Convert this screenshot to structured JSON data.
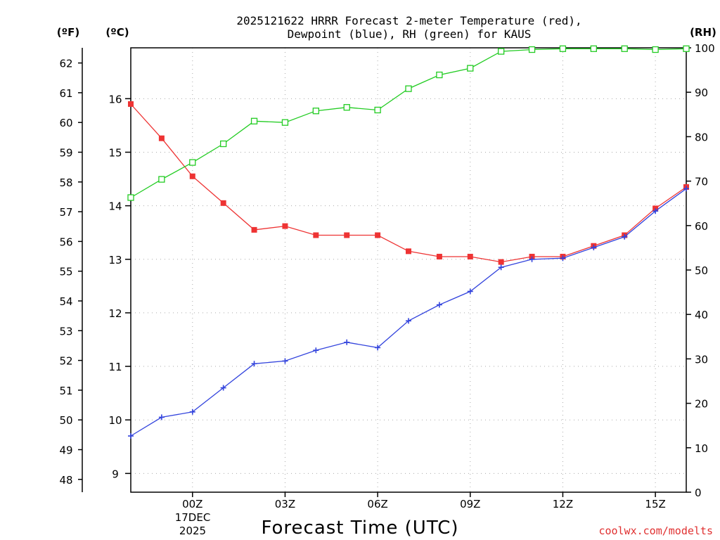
{
  "chart_data": {
    "type": "line",
    "title_lines": [
      "2025121622 HRRR Forecast 2-meter Temperature (red),",
      "Dewpoint (blue), RH (green) for KAUS"
    ],
    "xlabel": "Forecast Time (UTC)",
    "unit_labels": {
      "fahrenheit": "(ºF)",
      "celsius": "(ºC)",
      "rh": "(RH)"
    },
    "x_range": [
      -2,
      16
    ],
    "x": [
      -2,
      -1,
      0,
      1,
      2,
      3,
      4,
      5,
      6,
      7,
      8,
      9,
      10,
      11,
      12,
      13,
      14,
      15,
      16
    ],
    "x_ticks": [
      {
        "x": 0,
        "label": "00Z"
      },
      {
        "x": 3,
        "label": "03Z"
      },
      {
        "x": 6,
        "label": "06Z"
      },
      {
        "x": 9,
        "label": "09Z"
      },
      {
        "x": 12,
        "label": "12Z"
      },
      {
        "x": 15,
        "label": "15Z"
      }
    ],
    "date_label": [
      "17DEC",
      "2025"
    ],
    "celsius_range": [
      8.65,
      16.95
    ],
    "celsius_ticks": [
      9,
      10,
      11,
      12,
      13,
      14,
      15,
      16
    ],
    "fahrenheit_ticks": [
      48,
      49,
      50,
      51,
      52,
      53,
      54,
      55,
      56,
      57,
      58,
      59,
      60,
      61,
      62
    ],
    "rh_range": [
      0,
      100
    ],
    "rh_ticks": [
      0,
      10,
      20,
      30,
      40,
      50,
      60,
      70,
      80,
      90,
      100
    ],
    "series": [
      {
        "name": "Temperature",
        "axis": "celsius",
        "color": "#ee3333",
        "marker": "filled-square",
        "values": [
          15.9,
          15.26,
          14.55,
          14.05,
          13.55,
          13.62,
          13.45,
          13.45,
          13.45,
          13.15,
          13.05,
          13.05,
          12.95,
          13.05,
          13.05,
          13.25,
          13.45,
          13.95,
          14.35
        ]
      },
      {
        "name": "Dewpoint",
        "axis": "celsius",
        "color": "#3344dd",
        "marker": "plus",
        "values": [
          9.7,
          10.05,
          10.15,
          10.6,
          11.05,
          11.1,
          11.3,
          11.45,
          11.35,
          11.85,
          12.15,
          12.4,
          12.85,
          13.0,
          13.02,
          13.22,
          13.42,
          13.9,
          14.32
        ]
      },
      {
        "name": "RH",
        "axis": "rh",
        "color": "#22cc22",
        "marker": "open-square",
        "values": [
          66.3,
          70.4,
          74.2,
          78.4,
          83.5,
          83.2,
          85.8,
          86.6,
          86.0,
          90.8,
          93.9,
          95.4,
          99.2,
          99.6,
          99.8,
          99.8,
          99.8,
          99.6,
          99.8
        ]
      }
    ]
  },
  "credit": "coolwx.com/modelts"
}
